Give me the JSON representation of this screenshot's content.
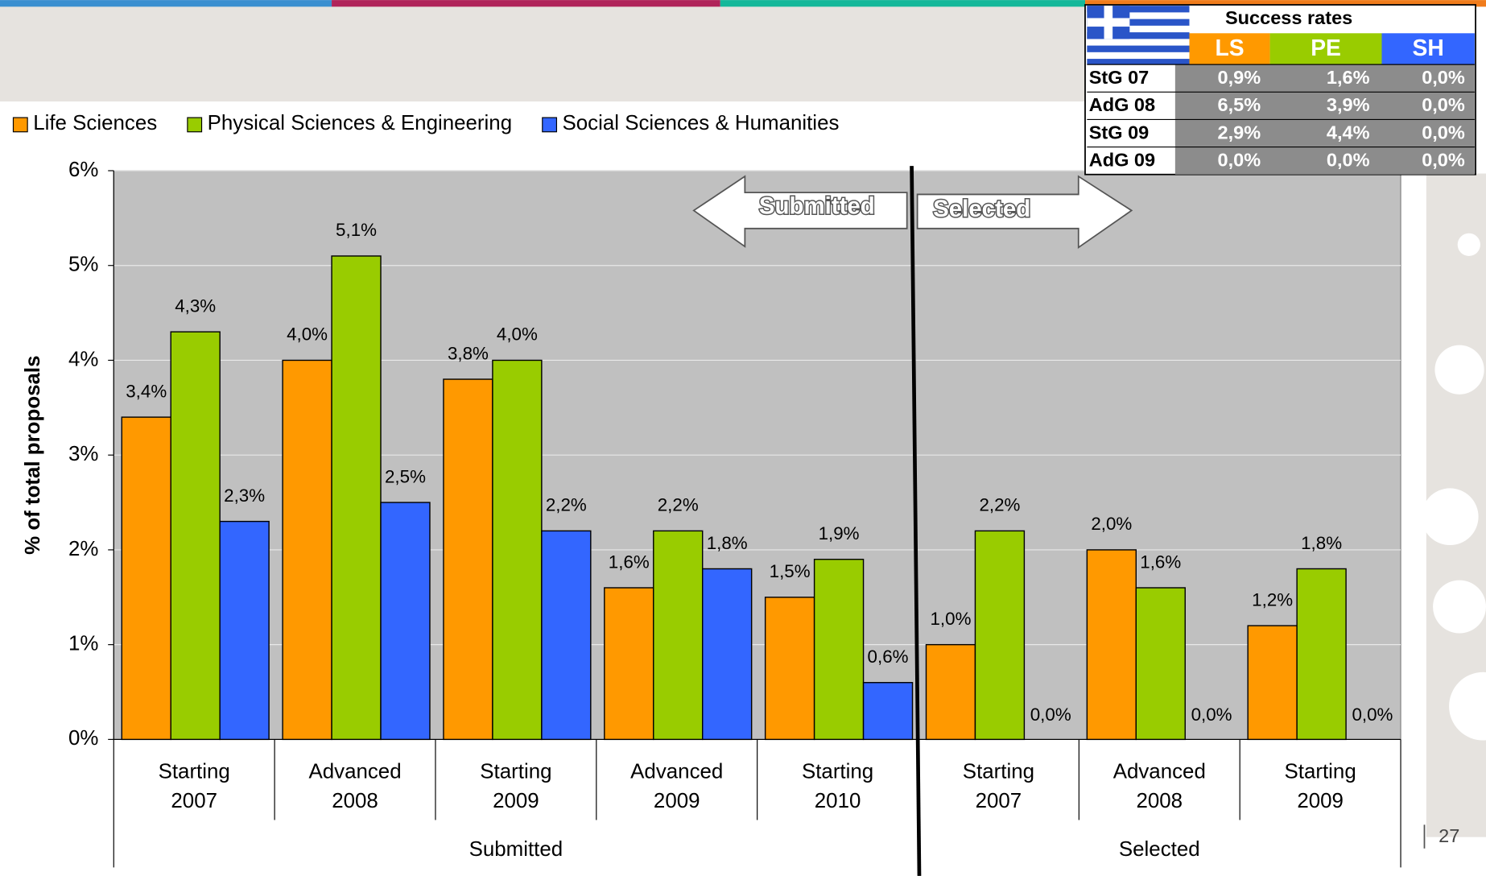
{
  "chart_data": {
    "type": "bar",
    "ylabel": "% of total proposals",
    "groups": [
      {
        "name": "Submitted",
        "categories": [
          [
            "Starting",
            "2007"
          ],
          [
            "Advanced",
            "2008"
          ],
          [
            "Starting",
            "2009"
          ],
          [
            "Advanced",
            "2009"
          ],
          [
            "Starting",
            "2010"
          ]
        ]
      },
      {
        "name": "Selected",
        "categories": [
          [
            "Starting",
            "2007"
          ],
          [
            "Advanced",
            "2008"
          ],
          [
            "Starting",
            "2009"
          ]
        ]
      }
    ],
    "series": [
      {
        "name": "Life Sciences",
        "color": "#ff9900",
        "values": [
          3.4,
          4.0,
          3.8,
          1.6,
          1.5,
          1.0,
          2.0,
          1.2
        ],
        "value_labels": [
          "3,4%",
          "4,0%",
          "3,8%",
          "1,6%",
          "1,5%",
          "1,0%",
          "2,0%",
          "1,2%"
        ]
      },
      {
        "name": "Physical Sciences & Engineering",
        "color": "#99cc00",
        "values": [
          4.3,
          5.1,
          4.0,
          2.2,
          1.9,
          2.2,
          1.6,
          1.8
        ],
        "value_labels": [
          "4,3%",
          "5,1%",
          "4,0%",
          "2,2%",
          "1,9%",
          "2,2%",
          "1,6%",
          "1,8%"
        ]
      },
      {
        "name": "Social Sciences & Humanities",
        "color": "#3366ff",
        "values": [
          2.3,
          2.5,
          2.2,
          1.8,
          0.6,
          0.0,
          0.0,
          0.0
        ],
        "value_labels": [
          "2,3%",
          "2,5%",
          "2,2%",
          "1,8%",
          "0,6%",
          "0,0%",
          "0,0%",
          "0,0%"
        ]
      }
    ],
    "ylim": [
      0,
      6
    ],
    "yticks": [
      {
        "value": 0,
        "label": "0%"
      },
      {
        "value": 1,
        "label": "1%"
      },
      {
        "value": 2,
        "label": "2%"
      },
      {
        "value": 3,
        "label": "3%"
      },
      {
        "value": 4,
        "label": "4%"
      },
      {
        "value": 5,
        "label": "5%"
      },
      {
        "value": 6,
        "label": "6%"
      }
    ],
    "grid": true,
    "legend": "top",
    "annotations": [
      "Submitted",
      "Selected"
    ]
  },
  "success_rates": {
    "title": "Success rates",
    "columns": [
      "LS",
      "PE",
      "SH"
    ],
    "rows": [
      {
        "label": "StG 07",
        "values": [
          "0,9%",
          "1,6%",
          "0,0%"
        ]
      },
      {
        "label": "AdG 08",
        "values": [
          "6,5%",
          "3,9%",
          "0,0%"
        ]
      },
      {
        "label": "StG 09",
        "values": [
          "2,9%",
          "4,4%",
          "0,0%"
        ]
      },
      {
        "label": "AdG 09",
        "values": [
          "0,0%",
          "0,0%",
          "0,0%"
        ]
      }
    ]
  },
  "page_number": "27"
}
